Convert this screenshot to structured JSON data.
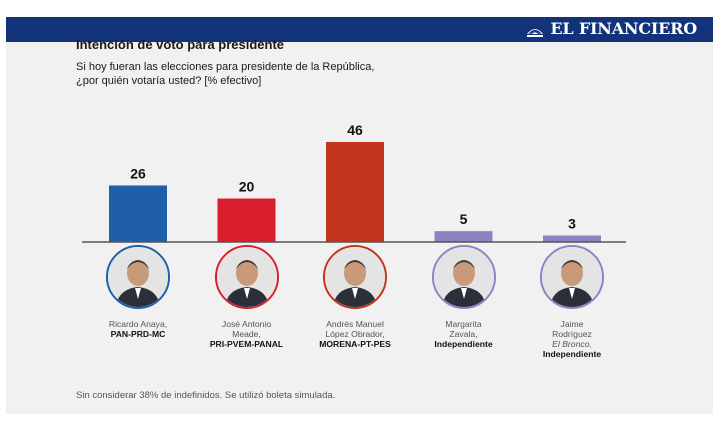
{
  "brand": {
    "name": "EL FINANCIERO",
    "icon": "newspaper-icon"
  },
  "header": {
    "title": "Intención de voto para presidente",
    "subtitle_line1": "Si hoy fueran las elecciones para presidente de la República,",
    "subtitle_line2": "¿por quién votaría usted? [% efectivo]"
  },
  "chart_data": {
    "type": "bar",
    "categories": [
      "Ricardo Anaya",
      "José Antonio Meade",
      "Andrés Manuel López Obrador",
      "Margarita Zavala",
      "Jaime Rodríguez"
    ],
    "values": [
      26,
      20,
      46,
      5,
      3
    ],
    "value_labels": [
      "26",
      "20",
      "46",
      "5",
      "3"
    ],
    "colors": [
      "#1f5ea8",
      "#d81e2c",
      "#c3341c",
      "#8c83c4",
      "#8c83c4"
    ],
    "ylim": [
      0,
      46
    ],
    "grid": false
  },
  "candidates": [
    {
      "name_lines": [
        "Ricardo Anaya,"
      ],
      "italic_line": "",
      "party": "PAN-PRD-MC",
      "ring": "#1f5ea8"
    },
    {
      "name_lines": [
        "José Antonio",
        "Meade,"
      ],
      "italic_line": "",
      "party": "PRI-PVEM-PANAL",
      "ring": "#d81e2c"
    },
    {
      "name_lines": [
        "Andrés Manuel",
        "López Obrador,"
      ],
      "italic_line": "",
      "party": "MORENA-PT-PES",
      "ring": "#c3341c"
    },
    {
      "name_lines": [
        "Margarita",
        "Zavala,"
      ],
      "italic_line": "",
      "party": "Independiente",
      "ring": "#8c83c4"
    },
    {
      "name_lines": [
        "Jaime",
        "Rodríguez"
      ],
      "italic_line": "El Bronco,",
      "party": "Independiente",
      "ring": "#8c83c4"
    }
  ],
  "footnote": "Sin considerar 38% de indefinidos. Se utilizó boleta simulada."
}
